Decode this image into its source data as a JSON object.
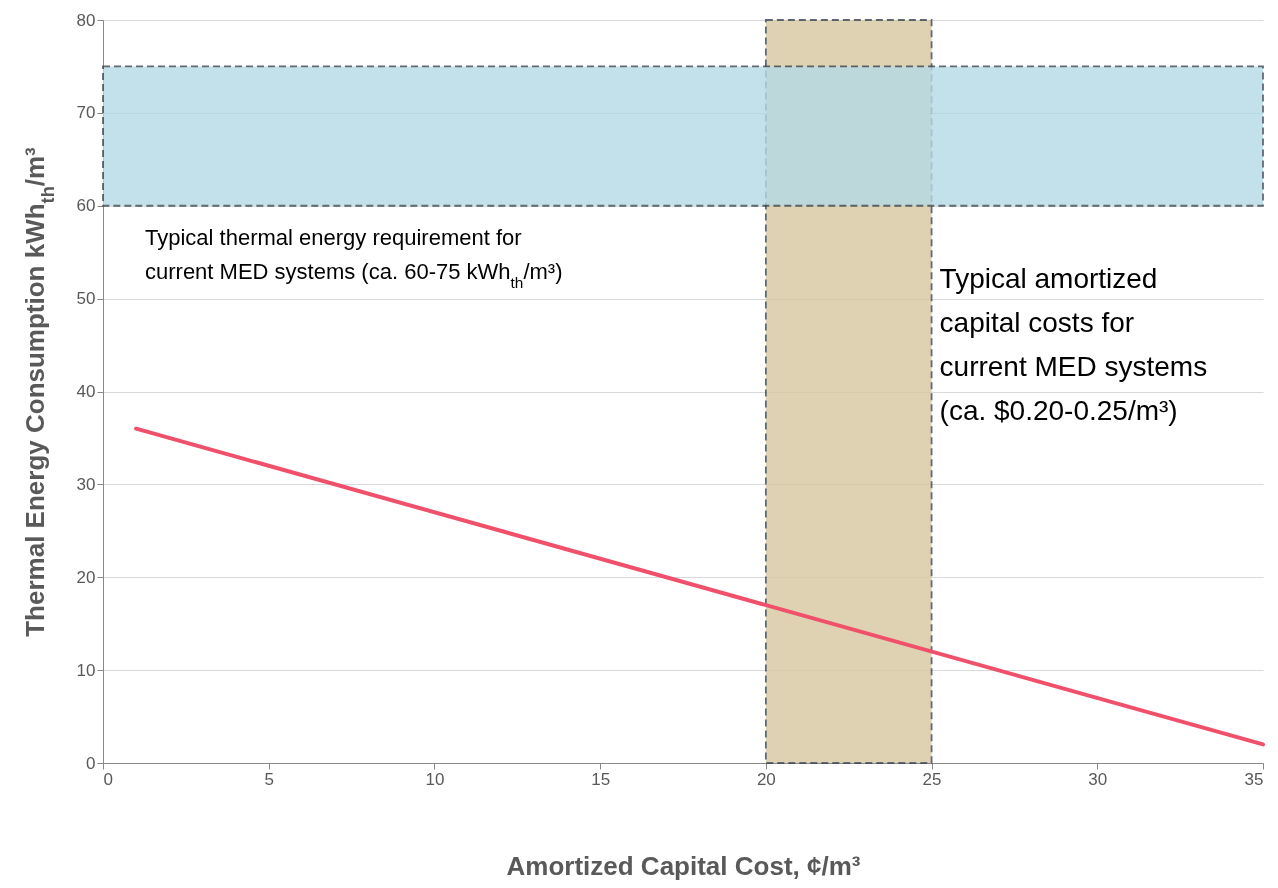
{
  "chart_data": {
    "type": "line",
    "xlabel": "Amortized Capital Cost, ¢/m³",
    "ylabel": "Thermal Energy Consumption kWh$_{th}$/m³",
    "series": [
      {
        "color": "#f0506a",
        "x": [
          1,
          35
        ],
        "values": [
          36,
          2
        ]
      }
    ],
    "bands": [
      {
        "axis": "y",
        "from": 60,
        "to": 75,
        "label": "Typical thermal energy requirement for current MED systems (ca. 60-75 kWh$_{th}$/m³)",
        "color": "#b4dae6"
      },
      {
        "axis": "x",
        "from": 20,
        "to": 25,
        "label": "Typical amortized capital costs for current MED systems (ca. $0.20-0.25/m³)",
        "color": "#d8c7a0"
      }
    ],
    "xlim": [
      0,
      35
    ],
    "ylim": [
      0,
      80
    ],
    "xticks": [
      0,
      5,
      10,
      15,
      20,
      25,
      30,
      35
    ],
    "yticks": [
      0,
      10,
      20,
      30,
      40,
      50,
      60,
      70,
      80
    ],
    "grid": "y",
    "marker": "none",
    "line_style": "solid"
  }
}
